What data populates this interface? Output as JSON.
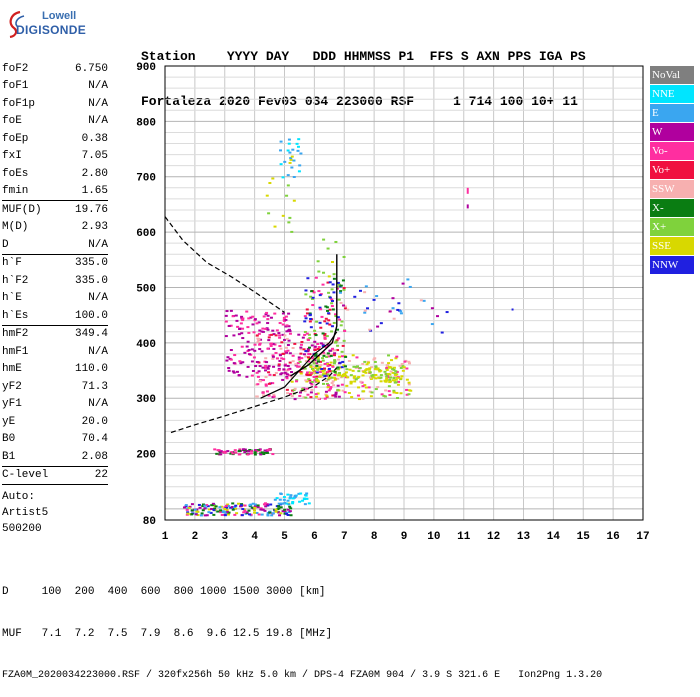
{
  "logo": {
    "top": "Lowell",
    "main": "DIGISONDE"
  },
  "header": {
    "line1": "Station    YYYY DAY   DDD HHMMSS P1  FFS S AXN PPS IGA PS",
    "line2": "Fortaleza 2020 Fev03 034 223000 RSF     1 714 100 10+ 11"
  },
  "params": [
    [
      {
        "k": "foF2",
        "v": "6.750"
      },
      {
        "k": "foF1",
        "v": "N/A"
      },
      {
        "k": "foF1p",
        "v": "N/A"
      },
      {
        "k": "foE",
        "v": "N/A"
      },
      {
        "k": "foEp",
        "v": "0.38"
      },
      {
        "k": "fxI",
        "v": "7.05"
      },
      {
        "k": "foEs",
        "v": "2.80"
      },
      {
        "k": "fmin",
        "v": "1.65"
      }
    ],
    [
      {
        "k": "MUF(D)",
        "v": "19.76"
      },
      {
        "k": "M(D)",
        "v": "2.93"
      },
      {
        "k": "D",
        "v": "N/A"
      }
    ],
    [
      {
        "k": "h`F",
        "v": "335.0"
      },
      {
        "k": "h`F2",
        "v": "335.0"
      },
      {
        "k": "h`E",
        "v": "N/A"
      },
      {
        "k": "h`Es",
        "v": "100.0"
      }
    ],
    [
      {
        "k": "hmF2",
        "v": "349.4"
      },
      {
        "k": "hmF1",
        "v": "N/A"
      },
      {
        "k": "hmE",
        "v": "110.0"
      },
      {
        "k": "yF2",
        "v": "71.3"
      },
      {
        "k": "yF1",
        "v": "N/A"
      },
      {
        "k": "yE",
        "v": "20.0"
      },
      {
        "k": "B0",
        "v": "70.4"
      },
      {
        "k": "B1",
        "v": "2.08"
      }
    ],
    [
      {
        "k": "C-level",
        "v": "22"
      }
    ]
  ],
  "auto": [
    "Auto:",
    "Artist5",
    "500200"
  ],
  "legend": [
    {
      "label": "NoVal",
      "color": "#7f7f7f"
    },
    {
      "label": "NNE",
      "color": "#00e5ff"
    },
    {
      "label": "E",
      "color": "#3aa6f0"
    },
    {
      "label": "W",
      "color": "#b0009e"
    },
    {
      "label": "Vo-",
      "color": "#ff2ea0"
    },
    {
      "label": "Vo+",
      "color": "#f01040"
    },
    {
      "label": "SSW",
      "color": "#f7b0b0"
    },
    {
      "label": "X-",
      "color": "#0a7d12"
    },
    {
      "label": "X+",
      "color": "#7fd23c"
    },
    {
      "label": "SSE",
      "color": "#d8d800"
    },
    {
      "label": "NNW",
      "color": "#2020e0"
    }
  ],
  "footer": {
    "line1": "D     100  200  400  600  800 1000 1500 3000 [km]",
    "line2": "MUF   7.1  7.2  7.5  7.9  8.6  9.6 12.5 19.8 [MHz]",
    "line3": "FZA0M_2020034223000.RSF / 320fx256h 50 kHz 5.0 km / DPS-4 FZA0M 904 / 3.9 S 321.6 E   Ion2Png 1.3.20"
  },
  "chart_data": {
    "type": "scatter",
    "xlim": [
      1,
      17
    ],
    "ylim": [
      80,
      900
    ],
    "x_ticks": [
      1,
      2,
      3,
      4,
      5,
      6,
      7,
      8,
      9,
      10,
      11,
      12,
      13,
      14,
      15,
      16,
      17
    ],
    "y_ticks": [
      80,
      200,
      300,
      400,
      500,
      600,
      700,
      800,
      900
    ],
    "grid": true,
    "series": [
      {
        "name": "profile-dashed",
        "points": [
          [
            1.0,
            628
          ],
          [
            1.6,
            585
          ],
          [
            2.4,
            545
          ],
          [
            3.2,
            520
          ],
          [
            4.0,
            492
          ],
          [
            4.6,
            470
          ],
          [
            5.0,
            455
          ]
        ]
      },
      {
        "name": "trace-F-lower",
        "points": [
          [
            1.2,
            238
          ],
          [
            2.0,
            252
          ],
          [
            3.0,
            268
          ],
          [
            4.0,
            285
          ],
          [
            5.0,
            302
          ],
          [
            6.0,
            322
          ],
          [
            6.5,
            340
          ],
          [
            6.75,
            355
          ]
        ]
      },
      {
        "name": "trace-F-upper",
        "points": [
          [
            4.2,
            300
          ],
          [
            5.0,
            320
          ],
          [
            5.5,
            350
          ],
          [
            6.0,
            380
          ],
          [
            6.5,
            400
          ],
          [
            6.75,
            420
          ]
        ]
      },
      {
        "name": "profile-solid",
        "points": [
          [
            5.2,
            340
          ],
          [
            5.8,
            360
          ],
          [
            6.2,
            380
          ],
          [
            6.6,
            400
          ],
          [
            6.75,
            430
          ],
          [
            6.75,
            560
          ]
        ]
      }
    ]
  }
}
